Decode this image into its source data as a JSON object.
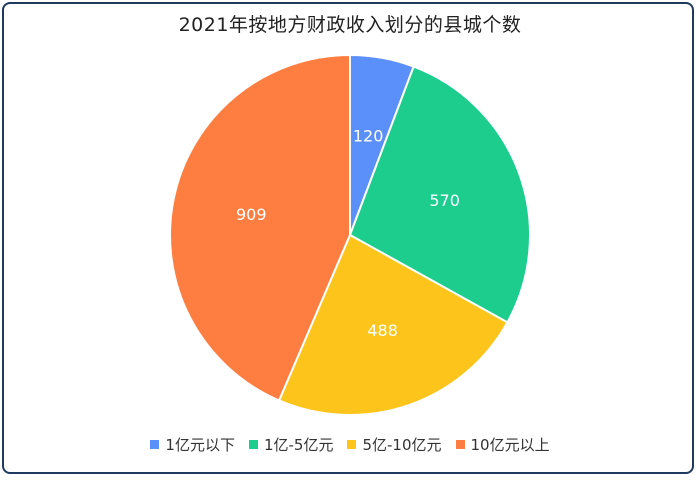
{
  "chart_data": {
    "type": "pie",
    "title": "2021年按地方财政收入划分的县城个数",
    "categories": [
      "1亿元以下",
      "1亿-5亿元",
      "5亿-10亿元",
      "10亿元以上"
    ],
    "values": [
      120,
      570,
      488,
      909
    ],
    "colors": [
      "#5b8ff9",
      "#1ccd8d",
      "#fdc51c",
      "#fd7e40"
    ],
    "legend_position": "bottom",
    "start_angle": "12 o'clock",
    "direction": "clockwise"
  }
}
